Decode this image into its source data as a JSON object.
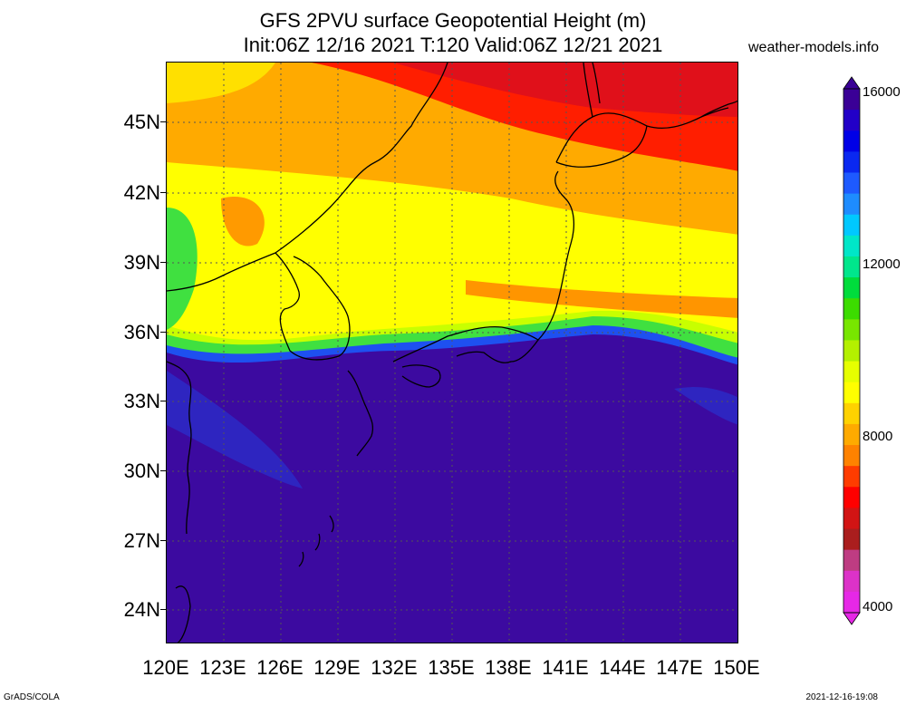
{
  "header": {
    "title_line1": "GFS 2PVU surface Geopotential Height (m)",
    "title_line2": "Init:06Z 12/16 2021 T:120 Valid:06Z 12/21 2021",
    "site": "weather-models.info"
  },
  "map": {
    "variable": "2PVU surface geopotential height",
    "units": "m",
    "lat_labels": [
      "45N",
      "42N",
      "39N",
      "36N",
      "33N",
      "30N",
      "27N",
      "24N"
    ],
    "lon_labels": [
      "120E",
      "123E",
      "126E",
      "129E",
      "132E",
      "135E",
      "138E",
      "141E",
      "144E",
      "147E",
      "150E"
    ],
    "gridlines": "dotted",
    "band_colors": {
      "deep_red": "#e0101a",
      "orange": "#ff9a00",
      "yellow": "#ffff00",
      "yellowgreen": "#c8ff00",
      "green": "#40e040",
      "blue": "#1e50f0",
      "purple": "#3c0aa0"
    }
  },
  "colorbar": {
    "labels": [
      "16000",
      "12000",
      "8000",
      "4000"
    ],
    "colors": [
      "#3a0096",
      "#2200c8",
      "#0000e6",
      "#0a28f0",
      "#1e5aff",
      "#1e8cff",
      "#00c8ff",
      "#00e6c8",
      "#00e68c",
      "#00dc3c",
      "#3cdc00",
      "#78e600",
      "#b4f000",
      "#e6ff00",
      "#ffff00",
      "#ffd200",
      "#ffaa00",
      "#ff8200",
      "#ff3c00",
      "#ff0000",
      "#d21414",
      "#aa1e1e",
      "#be3c82",
      "#dc32c8",
      "#e628e6"
    ]
  },
  "footer": {
    "left": "GrADS/COLA",
    "right": "2021-12-16-19:08"
  }
}
